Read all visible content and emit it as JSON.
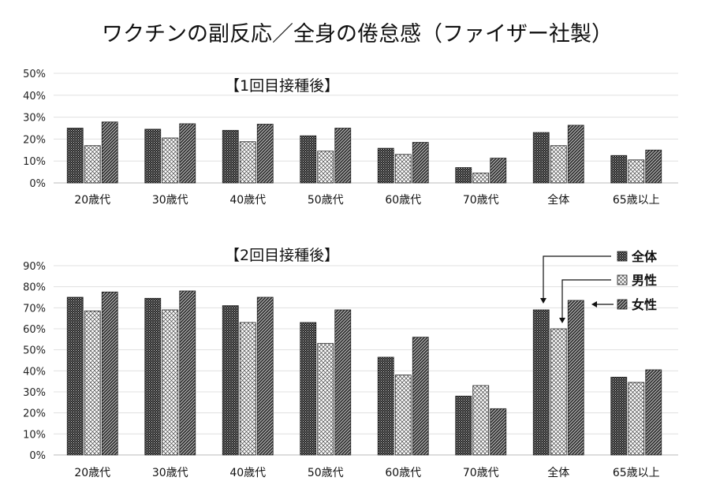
{
  "title": "ワクチンの副反応／全身の倦怠感（ファイザー社製）",
  "legend": {
    "items": [
      {
        "label": "全体",
        "pattern": "total"
      },
      {
        "label": "男性",
        "pattern": "male"
      },
      {
        "label": "女性",
        "pattern": "female"
      }
    ]
  },
  "chart_data": [
    {
      "type": "bar",
      "title": "【1回目接種後】",
      "categories": [
        "20歳代",
        "30歳代",
        "40歳代",
        "50歳代",
        "60歳代",
        "70歳代",
        "全体",
        "65歳以上"
      ],
      "series": [
        {
          "name": "全体",
          "values": [
            25,
            24.5,
            24,
            21.5,
            15.8,
            7,
            23,
            12.5
          ]
        },
        {
          "name": "男性",
          "values": [
            17,
            20.5,
            18.8,
            14.5,
            13,
            4.5,
            17,
            10.5
          ]
        },
        {
          "name": "女性",
          "values": [
            27.8,
            27,
            26.8,
            25,
            18.5,
            11.3,
            26.3,
            15
          ]
        }
      ],
      "yticks": [
        "0%",
        "10%",
        "20%",
        "30%",
        "40%",
        "50%"
      ],
      "ylim": [
        0,
        50
      ],
      "grid": true
    },
    {
      "type": "bar",
      "title": "【2回目接種後】",
      "categories": [
        "20歳代",
        "30歳代",
        "40歳代",
        "50歳代",
        "60歳代",
        "70歳代",
        "全体",
        "65歳以上"
      ],
      "series": [
        {
          "name": "全体",
          "values": [
            75,
            74.5,
            71,
            63,
            46.5,
            28,
            69,
            37
          ]
        },
        {
          "name": "男性",
          "values": [
            68.5,
            69,
            63,
            53,
            38,
            33,
            60,
            34.5
          ]
        },
        {
          "name": "女性",
          "values": [
            77.5,
            78,
            75,
            69,
            56,
            22,
            73.5,
            40.5
          ]
        }
      ],
      "yticks": [
        "0%",
        "10%",
        "20%",
        "30%",
        "40%",
        "50%",
        "60%",
        "70%",
        "80%",
        "90%"
      ],
      "ylim": [
        0,
        90
      ],
      "grid": true
    }
  ]
}
